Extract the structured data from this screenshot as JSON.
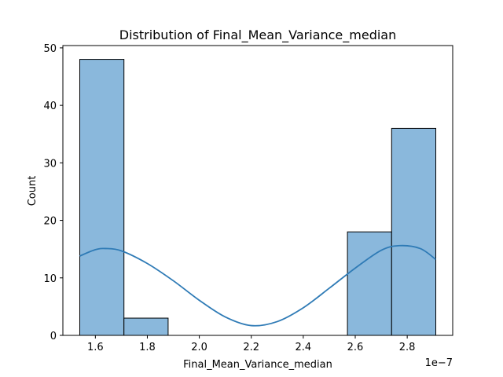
{
  "chart_data": {
    "type": "bar",
    "title": "Distribution of Final_Mean_Variance_median",
    "xlabel": "Final_Mean_Variance_median",
    "ylabel": "Count",
    "x_offset_label": "1e−7",
    "xlim": [
      1.475,
      2.975
    ],
    "ylim": [
      0,
      50.4
    ],
    "x_ticks": [
      1.6,
      1.8,
      2.0,
      2.2,
      2.4,
      2.6,
      2.8
    ],
    "x_tick_labels": [
      "1.6",
      "1.8",
      "2.0",
      "2.2",
      "2.4",
      "2.6",
      "2.8"
    ],
    "y_ticks": [
      0,
      10,
      20,
      30,
      40,
      50
    ],
    "y_tick_labels": [
      "0",
      "10",
      "20",
      "30",
      "40",
      "50"
    ],
    "bins": [
      {
        "x0": 1.54,
        "x1": 1.71,
        "count": 48
      },
      {
        "x0": 1.71,
        "x1": 1.88,
        "count": 3
      },
      {
        "x0": 2.57,
        "x1": 2.74,
        "count": 18
      },
      {
        "x0": 2.74,
        "x1": 2.91,
        "count": 36
      }
    ],
    "kde": {
      "name": "kde",
      "x": [
        1.54,
        1.6,
        1.64,
        1.7,
        1.8,
        1.9,
        2.0,
        2.1,
        2.2,
        2.3,
        2.4,
        2.5,
        2.6,
        2.7,
        2.77,
        2.85,
        2.91
      ],
      "y": [
        13.8,
        14.9,
        15.1,
        14.7,
        12.5,
        9.5,
        6.1,
        3.2,
        1.7,
        2.4,
        4.8,
        8.2,
        11.7,
        14.8,
        15.6,
        15.1,
        13.2
      ]
    },
    "grid": false,
    "colors": {
      "bar_fill": "#8ab8dc",
      "bar_edge": "#000000",
      "kde_line": "#2f7bb6"
    }
  }
}
